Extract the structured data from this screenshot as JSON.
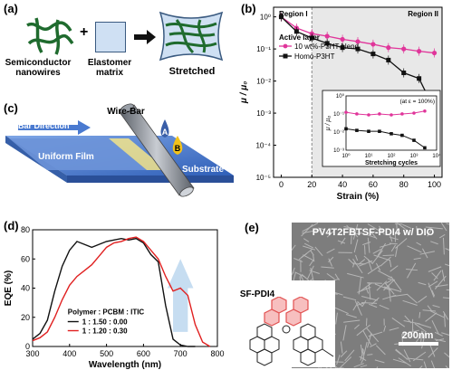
{
  "panels": {
    "a": {
      "label": "(a)",
      "nanowire_label": "Semiconductor nanowires",
      "plus": "+",
      "matrix_label": "Elastomer matrix",
      "stretched_label": "Stretched",
      "colors": {
        "nanowire": "#1f6b2e",
        "matrix_fill": "#cfe0f3",
        "matrix_stroke": "#3a5a80"
      }
    },
    "b": {
      "label": "(b)",
      "region1": "Region I",
      "region2": "Region II",
      "legend_title": "Active layer",
      "inset_annotation": "(at ε = 100%)"
    },
    "c": {
      "label": "(c)",
      "bar_direction": "Bar Direction",
      "wire_bar": "Wire-Bar",
      "drop_a": "A",
      "drop_b": "B",
      "uniform_film": "Uniform Film",
      "substrate": "Substrate",
      "colors": {
        "substrate": "#4a78c8",
        "drop_a": "#3a5fa8",
        "drop_b": "#f2c21a",
        "bar": "#8a8f98"
      }
    },
    "d": {
      "label": "(d)",
      "legend_title": "Polymer : PCBM : ITIC"
    },
    "e": {
      "label": "(e)",
      "title": "PV4T2FBTSF-PDI4 w/ DIO",
      "molecule_label": "SF-PDI4",
      "scale_bar": "200nm"
    }
  },
  "chart_data": [
    {
      "id": "b-main",
      "type": "line",
      "xlabel": "Strain (%)",
      "ylabel": "μ / μ₀",
      "xlim": [
        -5,
        105
      ],
      "ylim_log10": [
        -5,
        0.3
      ],
      "yscale": "log",
      "x_ticks": [
        0,
        20,
        40,
        60,
        80,
        100
      ],
      "y_ticks": [
        "10⁰",
        "10⁻¹",
        "10⁻²",
        "10⁻³",
        "10⁻⁴",
        "10⁻⁵"
      ],
      "region_divider_x": 20,
      "series": [
        {
          "name": "10 wt%-P3HT blend",
          "color": "#e0359a",
          "marker": "circle",
          "x": [
            0,
            10,
            20,
            30,
            40,
            50,
            60,
            70,
            80,
            90,
            100
          ],
          "y": [
            1.0,
            0.45,
            0.3,
            0.25,
            0.2,
            0.17,
            0.14,
            0.11,
            0.1,
            0.085,
            0.075
          ]
        },
        {
          "name": "Homo-P3HT",
          "color": "#111111",
          "marker": "square",
          "x": [
            0,
            10,
            20,
            30,
            40,
            50,
            60,
            70,
            80,
            90,
            100
          ],
          "y": [
            1.0,
            0.35,
            0.22,
            0.15,
            0.11,
            0.1,
            0.07,
            0.045,
            0.018,
            0.012,
            0.0013
          ]
        }
      ]
    },
    {
      "id": "b-inset",
      "type": "line",
      "xlabel": "Stretching cycles",
      "ylabel": "μ / μ₀",
      "xscale": "log",
      "yscale": "log",
      "x_ticks": [
        "10⁰",
        "10¹",
        "10²",
        "10³",
        "10⁴"
      ],
      "y_ticks": [
        "10⁰",
        "10⁻¹",
        "10⁻²",
        "10⁻³"
      ],
      "xlim_log10": [
        0,
        4
      ],
      "ylim_log10": [
        -3.3,
        0
      ],
      "series": [
        {
          "name": "",
          "color": "#e0359a",
          "marker": "circle",
          "x": [
            1,
            3,
            10,
            30,
            100,
            300,
            1000,
            3000
          ],
          "y": [
            0.1,
            0.08,
            0.07,
            0.08,
            0.07,
            0.08,
            0.09,
            0.12
          ]
        },
        {
          "name": "",
          "color": "#111111",
          "marker": "square",
          "x": [
            1,
            3,
            10,
            30,
            100,
            300,
            1000,
            3000
          ],
          "y": [
            0.01,
            0.008,
            0.007,
            0.007,
            0.005,
            0.004,
            0.002,
            0.0007
          ]
        }
      ]
    },
    {
      "id": "d",
      "type": "line",
      "xlabel": "Wavelength (nm)",
      "ylabel": "EQE (%)",
      "xlim": [
        300,
        800
      ],
      "ylim": [
        0,
        80
      ],
      "x_ticks": [
        300,
        400,
        500,
        600,
        700,
        800
      ],
      "y_ticks": [
        0,
        20,
        40,
        60,
        80
      ],
      "series": [
        {
          "name": "1 : 1.50 : 0.00",
          "color": "#111111",
          "x": [
            300,
            320,
            340,
            360,
            380,
            400,
            420,
            440,
            460,
            480,
            500,
            520,
            540,
            560,
            580,
            600,
            620,
            640,
            660,
            680,
            700,
            720,
            740
          ],
          "y": [
            5,
            9,
            18,
            38,
            55,
            66,
            72,
            70,
            68,
            70,
            72,
            73,
            74,
            73,
            74,
            71,
            63,
            58,
            28,
            5,
            1,
            0,
            0
          ]
        },
        {
          "name": "1 : 1.20 : 0.30",
          "color": "#e02020",
          "x": [
            300,
            320,
            340,
            360,
            380,
            400,
            420,
            440,
            460,
            480,
            500,
            520,
            540,
            560,
            580,
            600,
            620,
            640,
            660,
            680,
            700,
            720,
            740,
            760,
            780
          ],
          "y": [
            4,
            6,
            10,
            20,
            32,
            42,
            48,
            52,
            56,
            62,
            68,
            71,
            72,
            74,
            75,
            72,
            66,
            60,
            48,
            38,
            40,
            35,
            15,
            3,
            0
          ]
        }
      ]
    }
  ]
}
